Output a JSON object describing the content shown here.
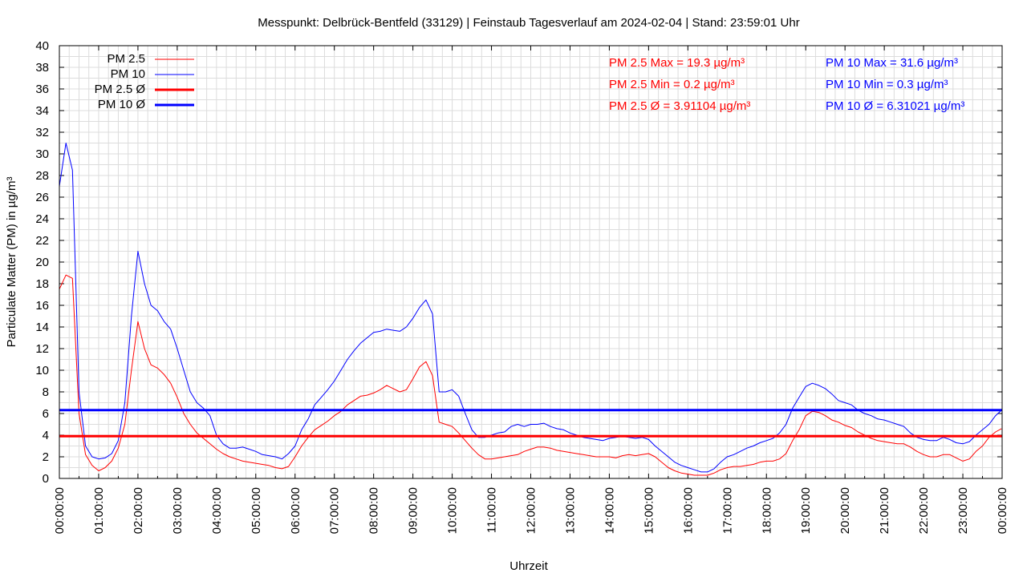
{
  "chart_data": {
    "type": "line",
    "title": "Messpunkt: Delbrück-Bentfeld (33129) | Feinstaub Tagesverlauf am 2024-02-04 | Stand: 23:59:01 Uhr",
    "xlabel": "Uhrzeit",
    "ylabel": "Particulate Matter (PM) in µg/m³",
    "ylim": [
      0,
      40
    ],
    "xlim": [
      "00:00:00",
      "24:00:00"
    ],
    "y_ticks": [
      0,
      2,
      4,
      6,
      8,
      10,
      12,
      14,
      16,
      18,
      20,
      22,
      24,
      26,
      28,
      30,
      32,
      34,
      36,
      38,
      40
    ],
    "x_tick_labels": [
      "00:00:00",
      "01:00:00",
      "02:00:00",
      "03:00:00",
      "04:00:00",
      "05:00:00",
      "06:00:00",
      "07:00:00",
      "08:00:00",
      "09:00:00",
      "10:00:00",
      "11:00:00",
      "12:00:00",
      "13:00:00",
      "14:00:00",
      "15:00:00",
      "16:00:00",
      "17:00:00",
      "18:00:00",
      "19:00:00",
      "20:00:00",
      "21:00:00",
      "22:00:00",
      "23:00:00",
      "00:00:00"
    ],
    "grid": true,
    "legend_position": "top-left",
    "x": [
      "00:00",
      "00:10",
      "00:20",
      "00:30",
      "00:40",
      "00:50",
      "01:00",
      "01:10",
      "01:20",
      "01:30",
      "01:40",
      "01:50",
      "02:00",
      "02:10",
      "02:20",
      "02:30",
      "02:40",
      "02:50",
      "03:00",
      "03:10",
      "03:20",
      "03:30",
      "03:40",
      "03:50",
      "04:00",
      "04:10",
      "04:20",
      "04:30",
      "04:40",
      "04:50",
      "05:00",
      "05:10",
      "05:20",
      "05:30",
      "05:40",
      "05:50",
      "06:00",
      "06:10",
      "06:20",
      "06:30",
      "06:40",
      "06:50",
      "07:00",
      "07:10",
      "07:20",
      "07:30",
      "07:40",
      "07:50",
      "08:00",
      "08:10",
      "08:20",
      "08:30",
      "08:40",
      "08:50",
      "09:00",
      "09:10",
      "09:20",
      "09:30",
      "09:40",
      "09:50",
      "10:00",
      "10:10",
      "10:20",
      "10:30",
      "10:40",
      "10:50",
      "11:00",
      "11:10",
      "11:20",
      "11:30",
      "11:40",
      "11:50",
      "12:00",
      "12:10",
      "12:20",
      "12:30",
      "12:40",
      "12:50",
      "13:00",
      "13:10",
      "13:20",
      "13:30",
      "13:40",
      "13:50",
      "14:00",
      "14:10",
      "14:20",
      "14:30",
      "14:40",
      "14:50",
      "15:00",
      "15:10",
      "15:20",
      "15:30",
      "15:40",
      "15:50",
      "16:00",
      "16:10",
      "16:20",
      "16:30",
      "16:40",
      "16:50",
      "17:00",
      "17:10",
      "17:20",
      "17:30",
      "17:40",
      "17:50",
      "18:00",
      "18:10",
      "18:20",
      "18:30",
      "18:40",
      "18:50",
      "19:00",
      "19:10",
      "19:20",
      "19:30",
      "19:40",
      "19:50",
      "20:00",
      "20:10",
      "20:20",
      "20:30",
      "20:40",
      "20:50",
      "21:00",
      "21:10",
      "21:20",
      "21:30",
      "21:40",
      "21:50",
      "22:00",
      "22:10",
      "22:20",
      "22:30",
      "22:40",
      "22:50",
      "23:00",
      "23:10",
      "23:20",
      "23:30",
      "23:40",
      "23:50",
      "23:59"
    ],
    "series": [
      {
        "name": "PM 2.5",
        "color": "#ff0000",
        "values": [
          17.5,
          18.8,
          18.5,
          6.0,
          2.2,
          1.2,
          0.7,
          1.0,
          1.6,
          2.8,
          5.0,
          10.0,
          14.5,
          12.0,
          10.5,
          10.2,
          9.6,
          8.8,
          7.5,
          6.0,
          5.0,
          4.2,
          3.7,
          3.2,
          2.7,
          2.3,
          2.0,
          1.8,
          1.6,
          1.5,
          1.4,
          1.3,
          1.2,
          1.0,
          0.9,
          1.1,
          2.0,
          3.0,
          3.8,
          4.5,
          4.9,
          5.3,
          5.8,
          6.2,
          6.8,
          7.2,
          7.6,
          7.7,
          7.9,
          8.2,
          8.6,
          8.3,
          8.0,
          8.2,
          9.2,
          10.3,
          10.8,
          9.5,
          5.2,
          5.0,
          4.8,
          4.2,
          3.5,
          2.8,
          2.2,
          1.8,
          1.8,
          1.9,
          2.0,
          2.1,
          2.2,
          2.5,
          2.7,
          2.9,
          2.9,
          2.8,
          2.6,
          2.5,
          2.4,
          2.3,
          2.2,
          2.1,
          2.0,
          2.0,
          2.0,
          1.9,
          2.1,
          2.2,
          2.1,
          2.2,
          2.3,
          2.0,
          1.5,
          1.0,
          0.7,
          0.5,
          0.4,
          0.3,
          0.3,
          0.3,
          0.5,
          0.8,
          1.0,
          1.1,
          1.1,
          1.2,
          1.3,
          1.5,
          1.6,
          1.6,
          1.8,
          2.3,
          3.5,
          4.5,
          5.8,
          6.2,
          6.1,
          5.8,
          5.4,
          5.2,
          4.9,
          4.7,
          4.3,
          4.0,
          3.7,
          3.5,
          3.4,
          3.3,
          3.2,
          3.2,
          2.9,
          2.5,
          2.2,
          2.0,
          2.0,
          2.2,
          2.2,
          1.9,
          1.6,
          1.8,
          2.5,
          3.0,
          3.8,
          4.3,
          4.6
        ]
      },
      {
        "name": "PM 10",
        "color": "#0000ff",
        "values": [
          27.0,
          31.0,
          28.5,
          8.0,
          3.0,
          2.0,
          1.8,
          1.9,
          2.3,
          3.5,
          7.0,
          15.0,
          21.0,
          18.0,
          16.0,
          15.5,
          14.5,
          13.8,
          12.0,
          10.0,
          8.0,
          7.0,
          6.5,
          5.8,
          4.0,
          3.2,
          2.8,
          2.8,
          2.9,
          2.7,
          2.5,
          2.2,
          2.1,
          2.0,
          1.8,
          2.3,
          3.0,
          4.5,
          5.5,
          6.8,
          7.5,
          8.2,
          9.0,
          10.0,
          11.0,
          11.8,
          12.5,
          13.0,
          13.5,
          13.6,
          13.8,
          13.7,
          13.6,
          14.0,
          14.8,
          15.8,
          16.5,
          15.2,
          8.0,
          8.0,
          8.2,
          7.6,
          6.0,
          4.5,
          3.8,
          3.8,
          4.0,
          4.2,
          4.3,
          4.8,
          5.0,
          4.8,
          5.0,
          5.0,
          5.1,
          4.8,
          4.6,
          4.5,
          4.2,
          4.0,
          3.8,
          3.7,
          3.6,
          3.5,
          3.7,
          3.8,
          3.9,
          3.8,
          3.7,
          3.8,
          3.6,
          3.0,
          2.5,
          2.0,
          1.5,
          1.2,
          1.0,
          0.8,
          0.6,
          0.6,
          0.9,
          1.5,
          2.0,
          2.2,
          2.5,
          2.8,
          3.0,
          3.3,
          3.5,
          3.7,
          4.2,
          5.0,
          6.5,
          7.5,
          8.5,
          8.8,
          8.6,
          8.3,
          7.8,
          7.2,
          7.0,
          6.8,
          6.3,
          6.0,
          5.8,
          5.5,
          5.4,
          5.2,
          5.0,
          4.8,
          4.2,
          3.8,
          3.6,
          3.5,
          3.5,
          3.8,
          3.6,
          3.3,
          3.2,
          3.4,
          4.0,
          4.5,
          5.0,
          5.8,
          6.3
        ]
      },
      {
        "name": "PM 2.5 Ø",
        "color": "#ff0000",
        "value": 3.91104
      },
      {
        "name": "PM 10 Ø",
        "color": "#0000ff",
        "value": 6.31021
      }
    ],
    "stats": {
      "pm25": [
        "PM 2.5 Max = 19.3 µg/m³",
        "PM 2.5 Min = 0.2 µg/m³",
        "PM 2.5 Ø = 3.91104 µg/m³"
      ],
      "pm10": [
        "PM 10 Max = 31.6 µg/m³",
        "PM 10 Min = 0.3 µg/m³",
        "PM 10 Ø = 6.31021 µg/m³"
      ]
    }
  }
}
